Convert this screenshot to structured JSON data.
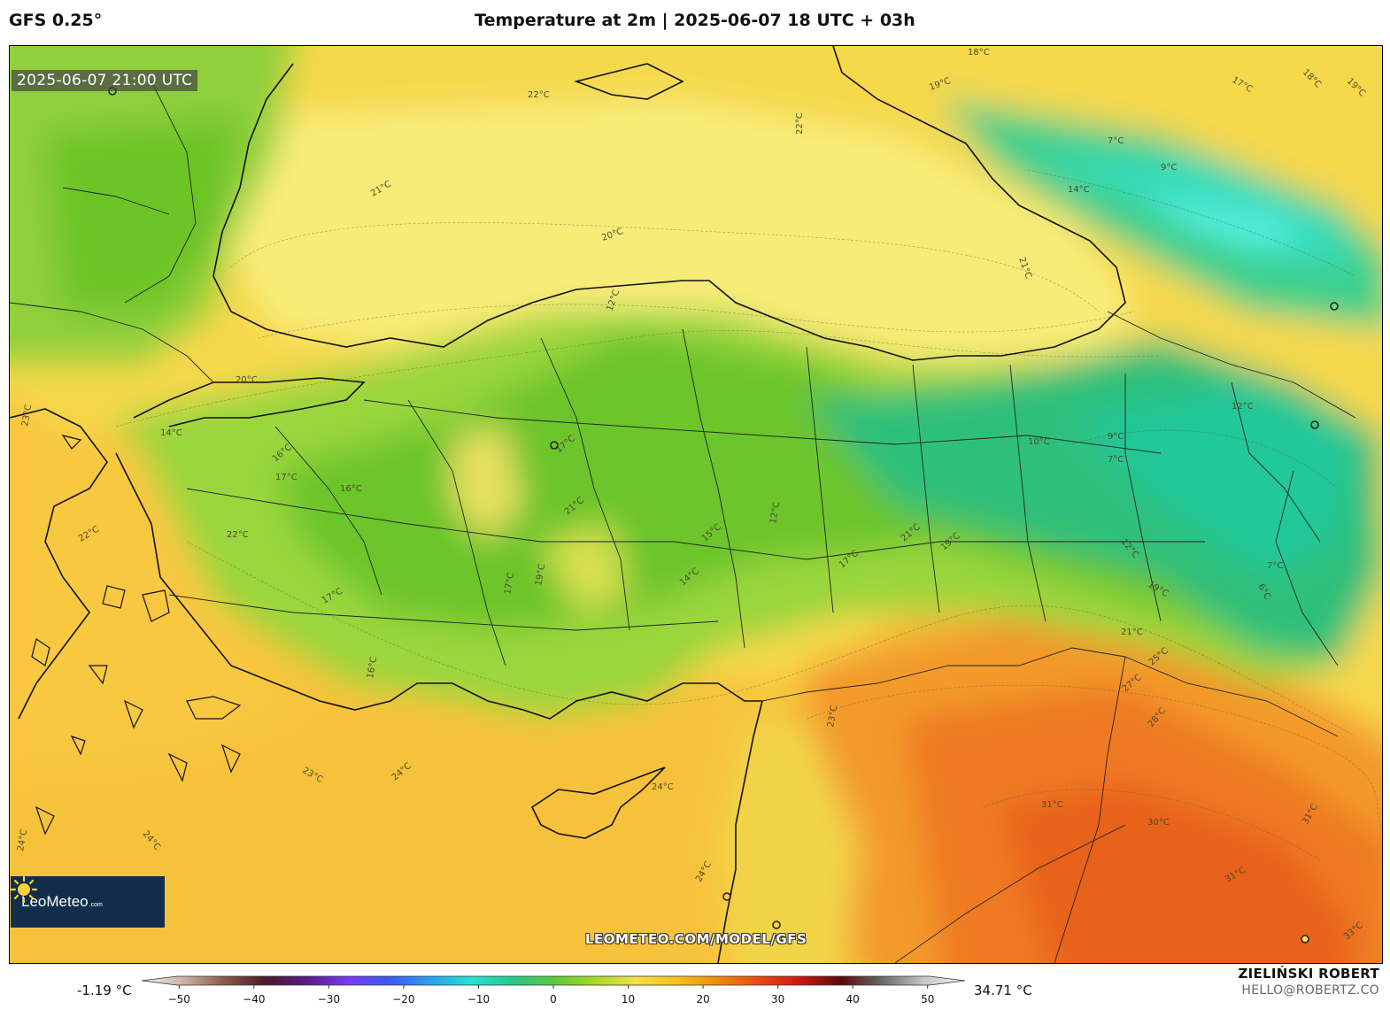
{
  "header": {
    "model": "GFS 0.25°",
    "title": "Temperature at 2m | 2025-06-07 18 UTC + 03h"
  },
  "map": {
    "timestamp": "2025-06-07 21:00 UTC",
    "url": "LEOMETEO.COM/MODEL/GFS",
    "logo": {
      "name": "LeoMeteo",
      "suffix": ".com"
    },
    "isotherm_labels": [
      "22°C",
      "22°C",
      "21°C",
      "20°C",
      "21°C",
      "19°C",
      "18°C",
      "17°C",
      "18°C",
      "19°C",
      "14°C",
      "9°C",
      "7°C",
      "12°C",
      "20°C",
      "14°C",
      "16°C",
      "17°C",
      "16°C",
      "22°C",
      "17°C",
      "17°C",
      "19°C",
      "16°C",
      "17°C",
      "21°C",
      "12°C",
      "15°C",
      "14°C",
      "17°C",
      "10°C",
      "9°C",
      "7°C",
      "12°C",
      "21°C",
      "19°C",
      "12°C",
      "7°C",
      "6°C",
      "19°C",
      "21°C",
      "25°C",
      "27°C",
      "28°C",
      "23°C",
      "24°C",
      "23°C",
      "24°C",
      "24°C",
      "24°C",
      "24°C",
      "31°C",
      "30°C",
      "31°C",
      "31°C",
      "33°C",
      "22°C",
      "23°C"
    ]
  },
  "legend": {
    "min_label": "-1.19 °C",
    "max_label": "34.71 °C",
    "ticks": [
      "−50",
      "−40",
      "−30",
      "−20",
      "−10",
      "0",
      "10",
      "20",
      "30",
      "40",
      "50"
    ],
    "tick_values": [
      -50,
      -40,
      -30,
      -20,
      -10,
      0,
      10,
      20,
      30,
      40,
      50
    ],
    "range": [
      -55,
      55
    ],
    "min_value": -1.19,
    "max_value": 34.71,
    "colors": [
      "#f5f0e6",
      "#c9b6a6",
      "#8a5a4a",
      "#4a1a2a",
      "#5a1a8a",
      "#7a3af0",
      "#3a5af0",
      "#2aa0f0",
      "#2ae0d0",
      "#2ac88a",
      "#5ac83a",
      "#a8d82a",
      "#f0e050",
      "#f8c020",
      "#f08a10",
      "#e84a10",
      "#c81a10",
      "#5a0a0a",
      "#6a6a6a",
      "#c8c8c8",
      "#f0f0f0"
    ]
  },
  "author": {
    "name": "ZIELIŃSKI ROBERT",
    "email": "HELLO@ROBERTZ.CO"
  }
}
